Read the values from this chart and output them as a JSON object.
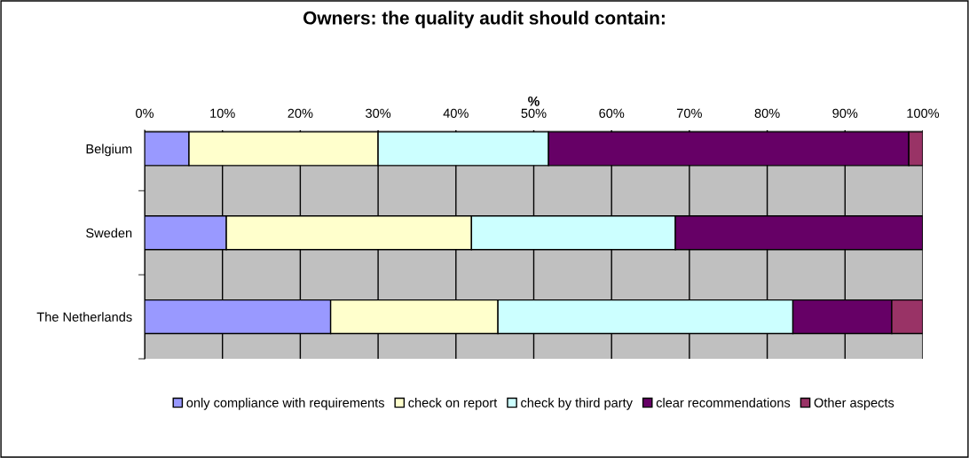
{
  "chart_data": {
    "type": "bar",
    "orientation": "horizontal",
    "stacked": true,
    "title": "Owners: the quality audit should contain:",
    "xlabel": "%",
    "categories": [
      "Belgium",
      "Sweden",
      "The Netherlands"
    ],
    "series": [
      {
        "name": "only compliance with requirements",
        "color": "#9999ff",
        "values": [
          5.7,
          10.5,
          23.9
        ]
      },
      {
        "name": "check on report",
        "color": "#ffffcc",
        "values": [
          24.3,
          31.5,
          21.5
        ]
      },
      {
        "name": "check by third party",
        "color": "#ccffff",
        "values": [
          21.9,
          26.2,
          37.9
        ]
      },
      {
        "name": "clear recommendations",
        "color": "#660066",
        "values": [
          46.3,
          31.8,
          12.7
        ]
      },
      {
        "name": "Other aspects",
        "color": "#993366",
        "values": [
          1.8,
          0,
          4.0
        ]
      }
    ],
    "xlim": [
      0,
      100
    ],
    "xticks": [
      {
        "value": 0,
        "label": "0%"
      },
      {
        "value": 10,
        "label": "10%"
      },
      {
        "value": 20,
        "label": "20%"
      },
      {
        "value": 30,
        "label": "30%"
      },
      {
        "value": 40,
        "label": "40%"
      },
      {
        "value": 50,
        "label": "50%"
      },
      {
        "value": 60,
        "label": "60%"
      },
      {
        "value": 70,
        "label": "70%"
      },
      {
        "value": 80,
        "label": "80%"
      },
      {
        "value": 90,
        "label": "90%"
      },
      {
        "value": 100,
        "label": "100%"
      }
    ],
    "grid": "x",
    "legend": "bottom"
  }
}
